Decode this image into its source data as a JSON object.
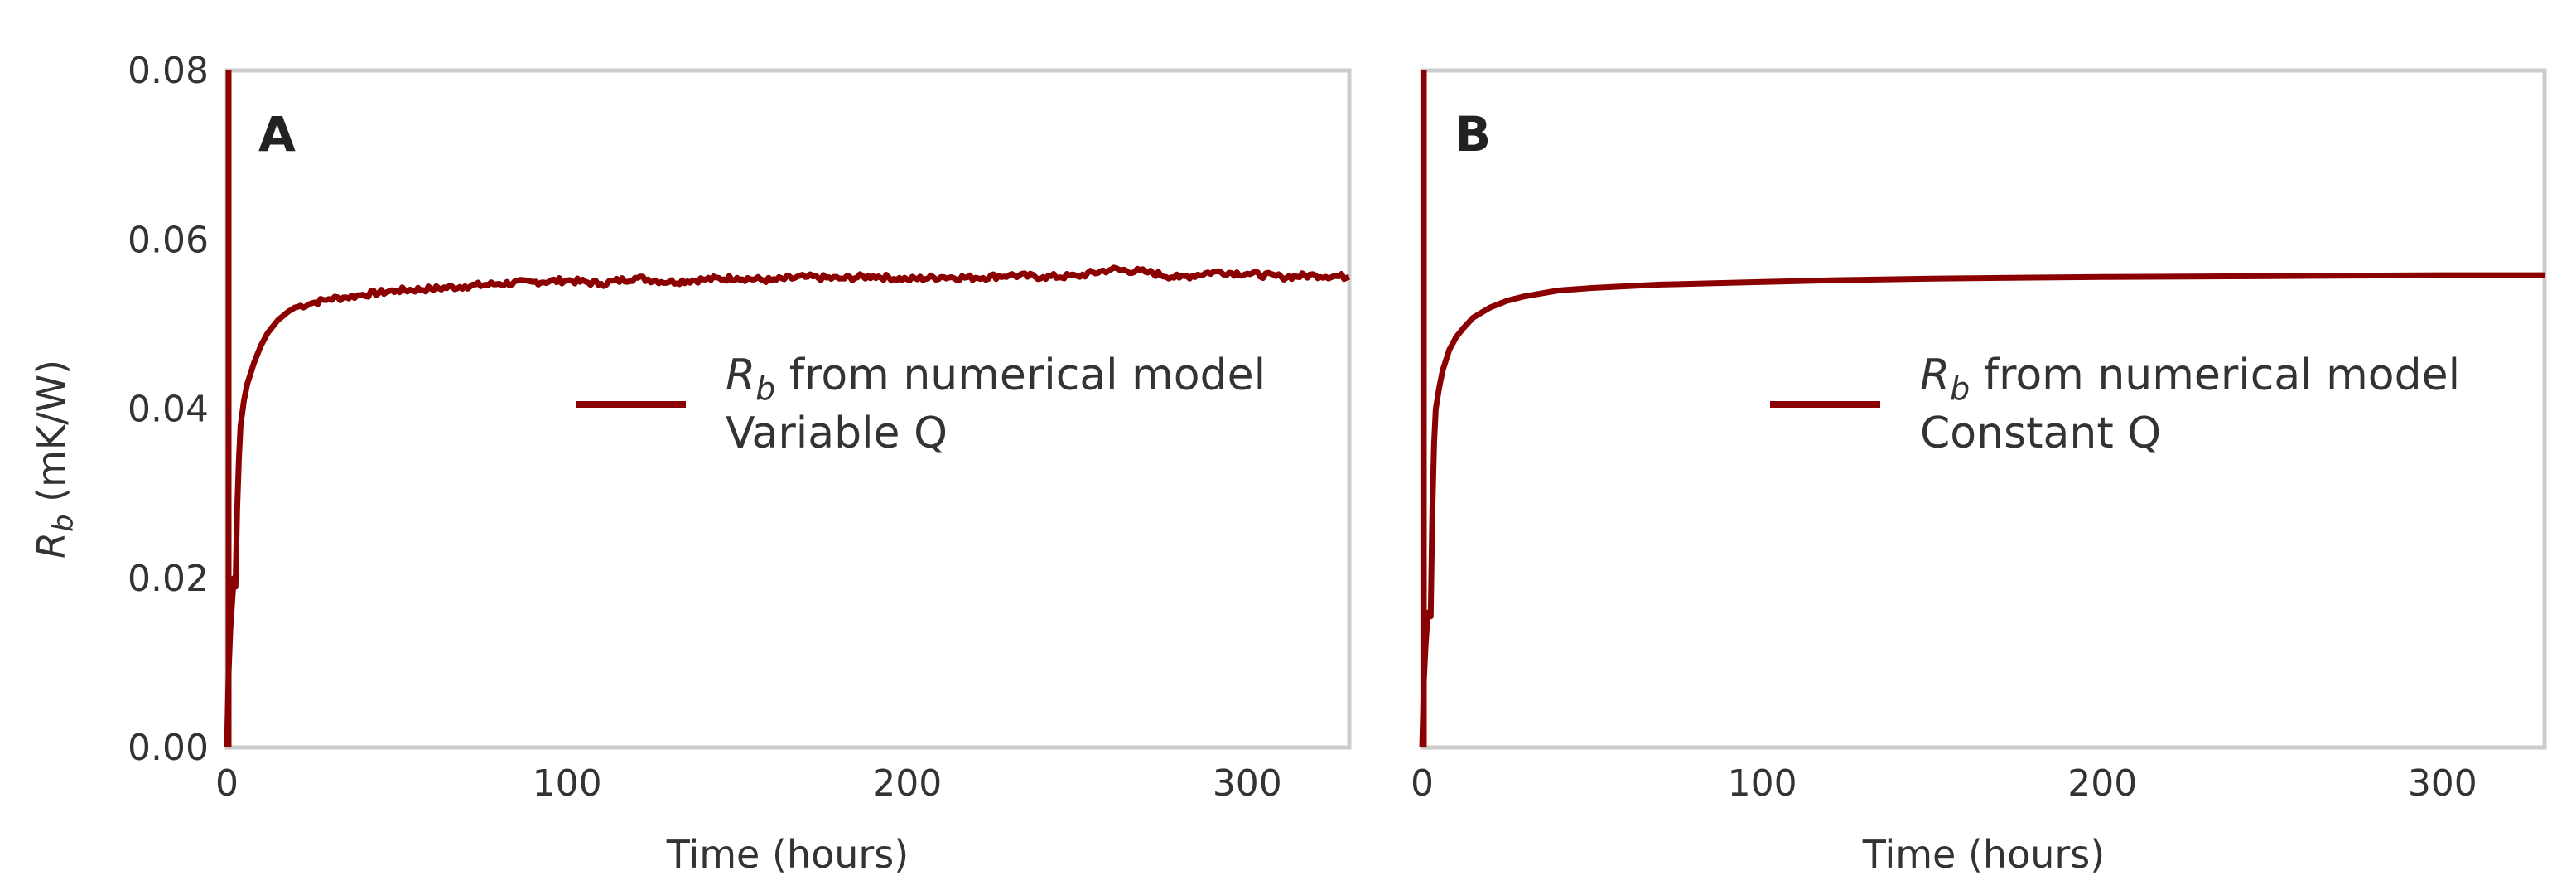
{
  "colors": {
    "series": "#8b0000",
    "frame": "#cccccc",
    "text": "#333333"
  },
  "chart_data": [
    {
      "type": "line",
      "panel_label": "A",
      "xlabel": "Time (hours)",
      "ylabel_main": "R",
      "ylabel_sub": "b",
      "ylabel_unit": " (mK/W)",
      "xlim": [
        0,
        330
      ],
      "ylim": [
        0,
        0.08
      ],
      "xticks": [
        0,
        100,
        200,
        300
      ],
      "yticks": [
        "0.00",
        "0.02",
        "0.04",
        "0.06",
        "0.08"
      ],
      "grid": false,
      "legend_position": "center-right",
      "series": [
        {
          "name_main": "R",
          "name_sub": "b",
          "name_rest": " from numerical model",
          "name_line2": "Variable Q",
          "noisy": true,
          "x": [
            0,
            0.5,
            1,
            1.5,
            2,
            2.5,
            3,
            3.5,
            4,
            5,
            6,
            8,
            10,
            12,
            15,
            18,
            20,
            25,
            30,
            35,
            40,
            50,
            60,
            70,
            80,
            90,
            100,
            110,
            120,
            130,
            140,
            150,
            160,
            170,
            180,
            190,
            200,
            210,
            220,
            230,
            240,
            250,
            260,
            270,
            280,
            290,
            300,
            310,
            320,
            330
          ],
          "values": [
            0.0,
            0.009,
            0.014,
            0.017,
            0.02,
            0.019,
            0.028,
            0.034,
            0.038,
            0.041,
            0.043,
            0.0455,
            0.0475,
            0.049,
            0.0505,
            0.0515,
            0.052,
            0.0525,
            0.053,
            0.0532,
            0.0535,
            0.054,
            0.0542,
            0.0545,
            0.0548,
            0.055,
            0.0552,
            0.0548,
            0.0555,
            0.055,
            0.0553,
            0.0555,
            0.0552,
            0.0556,
            0.0554,
            0.0557,
            0.0553,
            0.0556,
            0.0555,
            0.0558,
            0.0556,
            0.0557,
            0.0565,
            0.0562,
            0.0555,
            0.0562,
            0.056,
            0.0556,
            0.0558,
            0.0556
          ]
        }
      ]
    },
    {
      "type": "line",
      "panel_label": "B",
      "xlabel": "Time (hours)",
      "xlim": [
        0,
        330
      ],
      "ylim": [
        0,
        0.08
      ],
      "xticks": [
        0,
        100,
        200,
        300
      ],
      "grid": false,
      "legend_position": "center-right",
      "series": [
        {
          "name_main": "R",
          "name_sub": "b",
          "name_rest": " from numerical model",
          "name_line2": "Constant Q",
          "noisy": false,
          "x": [
            0,
            0.5,
            1,
            1.5,
            2,
            2.5,
            3,
            3.5,
            4,
            5,
            6,
            8,
            10,
            12,
            15,
            20,
            25,
            30,
            40,
            50,
            60,
            70,
            80,
            100,
            120,
            150,
            200,
            250,
            300,
            330
          ],
          "values": [
            0.0,
            0.008,
            0.012,
            0.015,
            0.016,
            0.0155,
            0.028,
            0.036,
            0.04,
            0.0425,
            0.0445,
            0.047,
            0.0485,
            0.0495,
            0.0508,
            0.052,
            0.0528,
            0.0533,
            0.054,
            0.0543,
            0.0545,
            0.0547,
            0.0548,
            0.055,
            0.0552,
            0.0554,
            0.0556,
            0.0557,
            0.0558,
            0.0558
          ]
        }
      ]
    }
  ]
}
